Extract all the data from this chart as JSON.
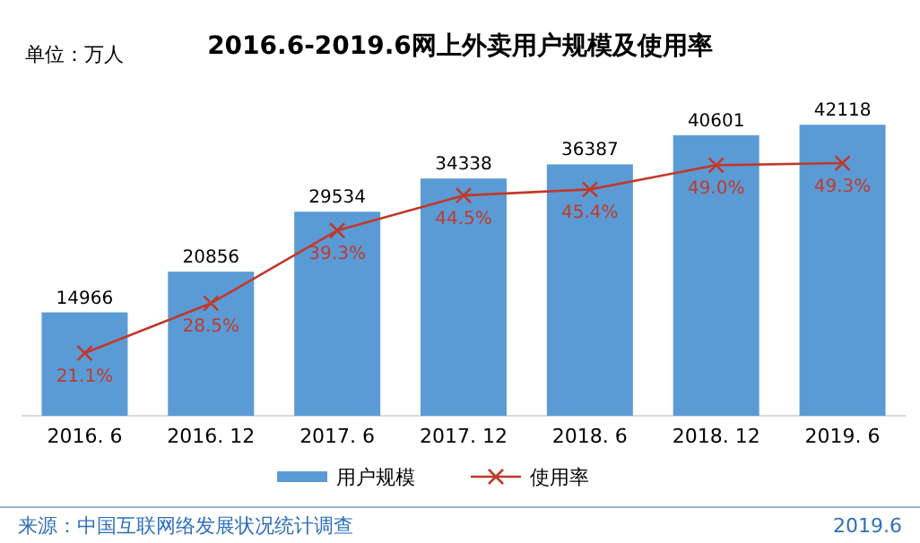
{
  "chart_data": {
    "type": "bar",
    "title": "2016.6-2019.6网上外卖用户规模及使用率",
    "categories": [
      "2016. 6",
      "2016. 12",
      "2017. 6",
      "2017. 12",
      "2018. 6",
      "2018. 12",
      "2019. 6"
    ],
    "series": [
      {
        "name": "用户规模",
        "color": "#5b9bd5",
        "values": [
          14966,
          20856,
          29534,
          34338,
          36387,
          40601,
          42118
        ]
      },
      {
        "name": "使用率",
        "type": "line",
        "axis": "y2",
        "color": "#c0392b",
        "marker": "cross",
        "values": [
          21.1,
          28.5,
          39.3,
          44.5,
          45.4,
          49.0,
          49.3
        ],
        "value_labels": [
          "21.1%",
          "28.5%",
          "39.3%",
          "44.5%",
          "45.4%",
          "49.0%",
          "49.3%"
        ]
      }
    ],
    "data_labels": true,
    "legend": "bottom",
    "annotations": [
      "单位：万人",
      "来源：中国互联网络发展状况统计调查",
      "2019.6"
    ]
  }
}
